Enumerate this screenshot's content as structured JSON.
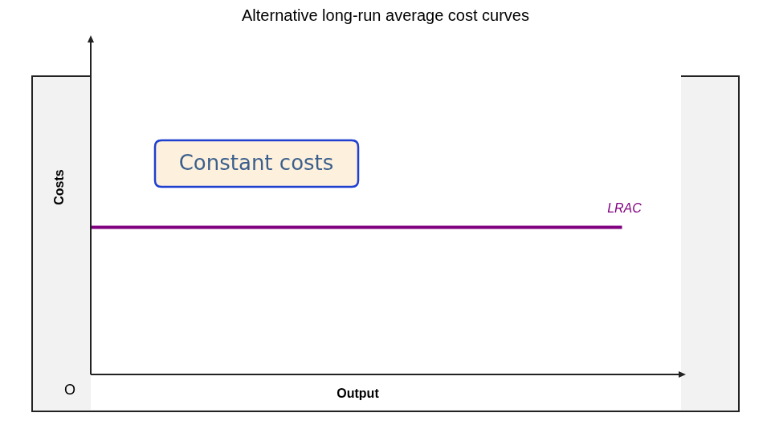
{
  "chart_data": {
    "type": "line",
    "title": "Alternative long-run average cost curves",
    "x_label": "Output",
    "y_label": "Costs",
    "origin_label": "O",
    "annotation": "Constant costs",
    "x": [
      0,
      9
    ],
    "series": [
      {
        "name": "LRAC",
        "color": "#800080",
        "values": [
          4.4,
          4.4
        ]
      }
    ],
    "xlim": [
      0,
      10
    ],
    "ylim": [
      0,
      10
    ],
    "tick_labels": false,
    "grid": false
  }
}
